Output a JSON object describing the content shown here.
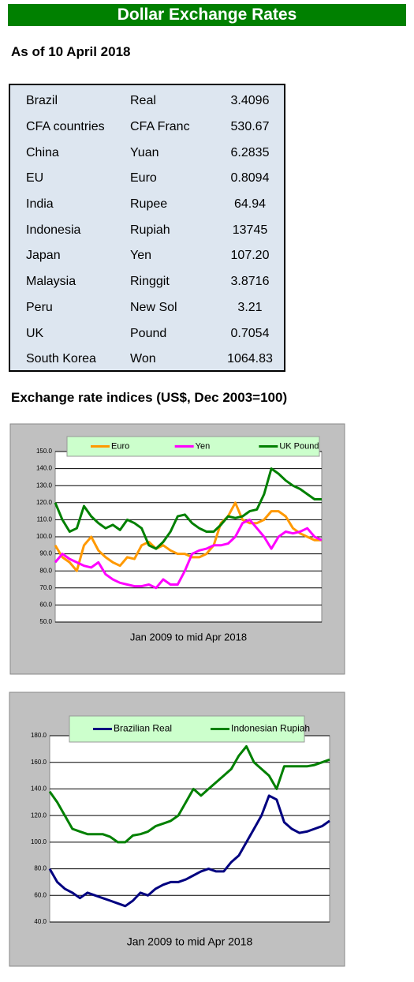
{
  "header": {
    "title": "Dollar Exchange Rates",
    "subtitle": "As of 10 April 2018"
  },
  "table": {
    "rows": [
      [
        "Brazil",
        "Real",
        "3.4096"
      ],
      [
        "CFA countries",
        "CFA Franc",
        "530.67"
      ],
      [
        "China",
        "Yuan",
        "6.2835"
      ],
      [
        "EU",
        "Euro",
        "0.8094"
      ],
      [
        "India",
        "Rupee",
        "64.94"
      ],
      [
        "Indonesia",
        "Rupiah",
        "13745"
      ],
      [
        "Japan",
        "Yen",
        "107.20"
      ],
      [
        "Malaysia",
        "Ringgit",
        "3.8716"
      ],
      [
        "Peru",
        "New Sol",
        "3.21"
      ],
      [
        "UK",
        "Pound",
        "0.7054"
      ],
      [
        "South Korea",
        "Won",
        "1064.83"
      ]
    ]
  },
  "section": {
    "title": "Exchange rate indices (US$, Dec 2003=100)"
  },
  "chart_data": [
    {
      "type": "line",
      "x_label": "Jan 2009  to mid Apr 2018",
      "legend": "top",
      "grid": true,
      "ylim": [
        50,
        150
      ],
      "yticks": [
        {
          "value": 50,
          "label": "50.0"
        },
        {
          "value": 60,
          "label": "60.0"
        },
        {
          "value": 70,
          "label": "70.0"
        },
        {
          "value": 80,
          "label": "80.0"
        },
        {
          "value": 90,
          "label": "90.0"
        },
        {
          "value": 100,
          "label": "100.0"
        },
        {
          "value": 110,
          "label": "110.0"
        },
        {
          "value": 120,
          "label": "120.0"
        },
        {
          "value": 130,
          "label": "130.0"
        },
        {
          "value": 140,
          "label": "140.0"
        },
        {
          "value": 150,
          "label": "150.0"
        }
      ],
      "series": [
        {
          "name": "Euro",
          "color": "#ff9900",
          "values": [
            95,
            88,
            85,
            80,
            95,
            100,
            92,
            88,
            85,
            83,
            88,
            87,
            95,
            97,
            93,
            95,
            92,
            90,
            90,
            88,
            88,
            90,
            95,
            108,
            112,
            120,
            110,
            108,
            108,
            110,
            115,
            115,
            112,
            105,
            102,
            100,
            98,
            98
          ]
        },
        {
          "name": "Yen",
          "color": "#ff00ff",
          "values": [
            85,
            90,
            87,
            85,
            83,
            82,
            85,
            78,
            75,
            73,
            72,
            71,
            71,
            72,
            70,
            75,
            72,
            72,
            80,
            90,
            92,
            93,
            95,
            95,
            96,
            100,
            108,
            110,
            105,
            100,
            93,
            100,
            103,
            102,
            103,
            105,
            100,
            98
          ]
        },
        {
          "name": "UK Pound",
          "color": "#008000",
          "values": [
            120,
            110,
            103,
            105,
            118,
            112,
            108,
            105,
            107,
            104,
            110,
            108,
            105,
            95,
            93,
            97,
            103,
            112,
            113,
            108,
            105,
            103,
            103,
            107,
            112,
            111,
            112,
            115,
            116,
            125,
            140,
            137,
            133,
            130,
            128,
            125,
            122,
            122
          ]
        }
      ]
    },
    {
      "type": "line",
      "x_label": "Jan 2009  to mid Apr 2018",
      "legend": "top",
      "grid": true,
      "ylim": [
        40,
        180
      ],
      "yticks": [
        {
          "value": 40,
          "label": "40.0"
        },
        {
          "value": 60,
          "label": "60.0"
        },
        {
          "value": 80,
          "label": "80.0"
        },
        {
          "value": 100,
          "label": "100.0"
        },
        {
          "value": 120,
          "label": "120.0"
        },
        {
          "value": 140,
          "label": "140.0"
        },
        {
          "value": 160,
          "label": "160.0"
        },
        {
          "value": 180,
          "label": "180.0"
        }
      ],
      "series": [
        {
          "name": "Brazilian Real",
          "color": "#000080",
          "values": [
            80,
            70,
            65,
            62,
            58,
            62,
            60,
            58,
            56,
            54,
            52,
            56,
            62,
            60,
            65,
            68,
            70,
            70,
            72,
            75,
            78,
            80,
            78,
            78,
            85,
            90,
            100,
            110,
            120,
            135,
            132,
            115,
            110,
            107,
            108,
            110,
            112,
            116
          ]
        },
        {
          "name": "Indonesian Rupiah",
          "color": "#008000",
          "values": [
            138,
            130,
            120,
            110,
            108,
            106,
            106,
            106,
            104,
            100,
            100,
            105,
            106,
            108,
            112,
            114,
            116,
            120,
            130,
            140,
            135,
            140,
            145,
            150,
            155,
            165,
            172,
            160,
            155,
            150,
            140,
            157,
            157,
            157,
            157,
            158,
            160,
            162
          ]
        }
      ]
    }
  ]
}
